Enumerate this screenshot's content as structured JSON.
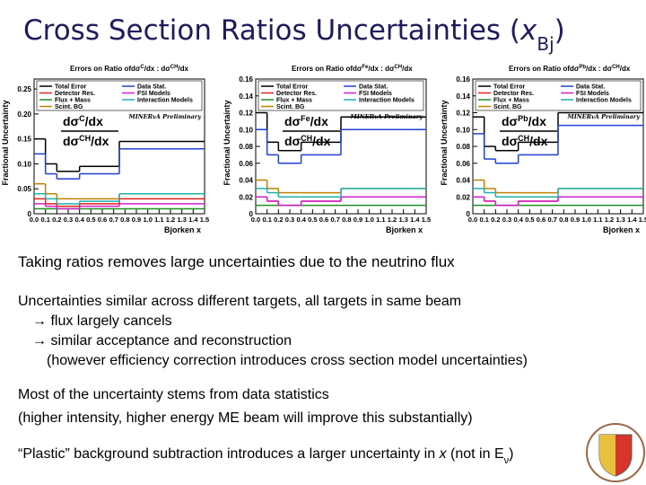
{
  "slide": {
    "title": [
      "Cross Section Ratios Uncertainties (",
      "x",
      "Bj",
      ")"
    ],
    "paragraphs": [
      [
        "Taking ratios removes large uncertainties due to the neutrino flux"
      ],
      [
        "Uncertainties similar across different targets, all targets in same beam",
        "→ flux largely cancels",
        "→ similar acceptance and reconstruction",
        "(however efficiency correction introduces cross section model uncertainties)"
      ],
      [
        "Most of the uncertainty stems from data statistics",
        "(higher intensity, higher energy ME beam will improve this substantially)"
      ]
    ],
    "last": [
      "“Plastic” background subtraction introduces a larger uncertainty in ",
      "x",
      " (not in E",
      "ν",
      ")"
    ]
  },
  "chart_data": [
    {
      "type": "histogram",
      "title": "Errors on Ratio of",
      "title_ratio": [
        "dσ",
        "C",
        "/dx : ",
        "dσ",
        "CH",
        "/dx"
      ],
      "xlabel": "Bjorken x",
      "ylabel": "Fractional Uncertainty",
      "annotation": "MINERvA Preliminary",
      "ratio_top": [
        "dσ",
        "C",
        "/dx"
      ],
      "ratio_bottom": [
        "dσ",
        "CH",
        "/dx"
      ],
      "bins": [
        0,
        0.1,
        0.2,
        0.3,
        0.4,
        0.75,
        1.5
      ],
      "xlim": [
        0,
        1.5
      ],
      "xticks": [
        {
          "value": 0,
          "label": "0.0"
        },
        0.1,
        0.2,
        0.3,
        0.4,
        0.5,
        0.6,
        0.7,
        0.8,
        0.9,
        {
          "value": 1,
          "label": "1.0"
        },
        1.1,
        1.2,
        1.3,
        1.4,
        1.5
      ],
      "ylim": [
        0,
        0.27
      ],
      "yticks": [
        0,
        0.05,
        {
          "value": 0.1,
          "label": "0.10"
        },
        0.15,
        {
          "value": 0.2,
          "label": "0.20"
        },
        0.25
      ],
      "series": [
        {
          "name": "Total Error",
          "color": "#000000",
          "values": [
            0.15,
            0.1,
            0.085,
            0.085,
            0.095,
            0.145
          ]
        },
        {
          "name": "Detector Res.",
          "color": "#e02020",
          "values": [
            0.03,
            0.02,
            0.015,
            0.015,
            0.02,
            0.03
          ]
        },
        {
          "name": "Flux + Mass",
          "color": "#209020",
          "values": [
            0.01,
            0.01,
            0.01,
            0.01,
            0.01,
            0.01
          ]
        },
        {
          "name": "Scint. BG",
          "color": "#c08000",
          "values": [
            0.06,
            0.04,
            0.03,
            0.03,
            0.03,
            0.04
          ]
        },
        {
          "name": "Data Stat.",
          "color": "#2040d0",
          "values": [
            0.12,
            0.08,
            0.07,
            0.07,
            0.08,
            0.13
          ]
        },
        {
          "name": "FSI Models",
          "color": "#d020d0",
          "values": [
            0.02,
            0.015,
            0.01,
            0.01,
            0.015,
            0.02
          ]
        },
        {
          "name": "Interaction Models",
          "color": "#20b0b0",
          "values": [
            0.04,
            0.03,
            0.02,
            0.02,
            0.025,
            0.04
          ]
        }
      ]
    },
    {
      "type": "histogram",
      "title": "Errors on Ratio of",
      "title_ratio": [
        "dσ",
        "Fe",
        "/dx : ",
        "dσ",
        "CH",
        "/dx"
      ],
      "xlabel": "Bjorken x",
      "ylabel": "Fractional Uncertainty",
      "annotation": "MINERvA Preliminary",
      "ratio_top": [
        "dσ",
        "Fe",
        "/dx"
      ],
      "ratio_bottom": [
        "dσ",
        "CH",
        "/dx"
      ],
      "bins": [
        0,
        0.1,
        0.2,
        0.3,
        0.4,
        0.75,
        1.5
      ],
      "xlim": [
        0,
        1.5
      ],
      "xticks": [
        {
          "value": 0,
          "label": "0.0"
        },
        0.1,
        0.2,
        0.3,
        0.4,
        0.5,
        0.6,
        0.7,
        0.8,
        0.9,
        {
          "value": 1,
          "label": "1.0"
        },
        1.1,
        1.2,
        1.3,
        1.4,
        1.5
      ],
      "ylim": [
        0,
        0.16
      ],
      "yticks": [
        0,
        0.02,
        0.04,
        0.06,
        0.08,
        {
          "value": 0.1,
          "label": "0.10"
        },
        0.12,
        0.14,
        0.16
      ],
      "series": [
        {
          "name": "Total Error",
          "color": "#000000",
          "values": [
            0.12,
            0.085,
            0.075,
            0.075,
            0.085,
            0.115
          ]
        },
        {
          "name": "Detector Res.",
          "color": "#e02020",
          "values": [
            0.02,
            0.015,
            0.01,
            0.01,
            0.015,
            0.02
          ]
        },
        {
          "name": "Flux + Mass",
          "color": "#209020",
          "values": [
            0.01,
            0.01,
            0.01,
            0.01,
            0.01,
            0.01
          ]
        },
        {
          "name": "Scint. BG",
          "color": "#c08000",
          "values": [
            0.04,
            0.03,
            0.025,
            0.025,
            0.025,
            0.03
          ]
        },
        {
          "name": "Data Stat.",
          "color": "#2040d0",
          "values": [
            0.1,
            0.07,
            0.06,
            0.06,
            0.07,
            0.1
          ]
        },
        {
          "name": "FSI Models",
          "color": "#d020d0",
          "values": [
            0.02,
            0.015,
            0.01,
            0.01,
            0.015,
            0.02
          ]
        },
        {
          "name": "Interaction Models",
          "color": "#20b0b0",
          "values": [
            0.03,
            0.025,
            0.02,
            0.02,
            0.02,
            0.03
          ]
        }
      ]
    },
    {
      "type": "histogram",
      "title": "Errors on Ratio of",
      "title_ratio": [
        "dσ",
        "Pb",
        "/dx : ",
        "dσ",
        "CH",
        "/dx"
      ],
      "xlabel": "Bjorken x",
      "ylabel": "Fractional Uncertainty",
      "annotation": "MINERvA Preliminary",
      "ratio_top": [
        "dσ",
        "Pb",
        "/dx"
      ],
      "ratio_bottom": [
        "dσ",
        "CH",
        "/dx"
      ],
      "bins": [
        0,
        0.1,
        0.2,
        0.3,
        0.4,
        0.75,
        1.5
      ],
      "xlim": [
        0,
        1.5
      ],
      "xticks": [
        {
          "value": 0,
          "label": "0.0"
        },
        0.1,
        0.2,
        0.3,
        0.4,
        0.5,
        0.6,
        0.7,
        0.8,
        0.9,
        {
          "value": 1,
          "label": "1.0"
        },
        1.1,
        1.2,
        1.3,
        1.4,
        1.5
      ],
      "ylim": [
        0,
        0.16
      ],
      "yticks": [
        0,
        0.02,
        0.04,
        0.06,
        0.08,
        {
          "value": 0.1,
          "label": "0.10"
        },
        0.12,
        0.14,
        0.16
      ],
      "series": [
        {
          "name": "Total Error",
          "color": "#000000",
          "values": [
            0.115,
            0.08,
            0.075,
            0.075,
            0.085,
            0.12
          ]
        },
        {
          "name": "Detector Res.",
          "color": "#e02020",
          "values": [
            0.02,
            0.015,
            0.01,
            0.01,
            0.015,
            0.02
          ]
        },
        {
          "name": "Flux + Mass",
          "color": "#209020",
          "values": [
            0.01,
            0.01,
            0.01,
            0.01,
            0.01,
            0.01
          ]
        },
        {
          "name": "Scint. BG",
          "color": "#c08000",
          "values": [
            0.04,
            0.03,
            0.025,
            0.025,
            0.025,
            0.03
          ]
        },
        {
          "name": "Data Stat.",
          "color": "#2040d0",
          "values": [
            0.095,
            0.065,
            0.06,
            0.06,
            0.07,
            0.105
          ]
        },
        {
          "name": "FSI Models",
          "color": "#d020d0",
          "values": [
            0.02,
            0.015,
            0.01,
            0.01,
            0.015,
            0.02
          ]
        },
        {
          "name": "Interaction Models",
          "color": "#20b0b0",
          "values": [
            0.03,
            0.025,
            0.02,
            0.02,
            0.02,
            0.03
          ]
        }
      ]
    }
  ]
}
